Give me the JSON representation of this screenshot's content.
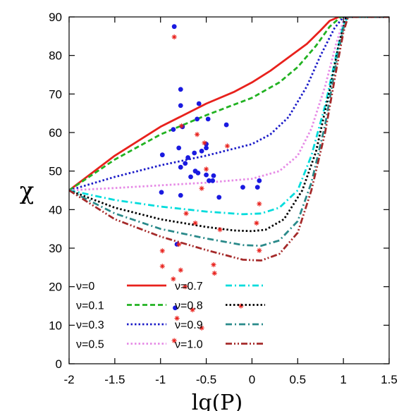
{
  "chart_data": {
    "type": "line",
    "xlabel": "lg(P)",
    "ylabel": "χ",
    "xlim": [
      -2,
      1.5
    ],
    "ylim": [
      0,
      90
    ],
    "xticks": [
      "-2",
      "-1.5",
      "-1",
      "-0.5",
      "0",
      "0.5",
      "1",
      "1.5"
    ],
    "yticks": [
      "0",
      "10",
      "20",
      "30",
      "40",
      "50",
      "60",
      "70",
      "80",
      "90"
    ],
    "grid": false,
    "legend_position": "bottom-left",
    "series": [
      {
        "name": "ν=0",
        "color": "#e8211c",
        "dash": "solid",
        "points": [
          [
            -2,
            45
          ],
          [
            -1.5,
            54
          ],
          [
            -1,
            61.5
          ],
          [
            -0.5,
            67.5
          ],
          [
            -0.2,
            70.5
          ],
          [
            0,
            73
          ],
          [
            0.2,
            76
          ],
          [
            0.4,
            79.5
          ],
          [
            0.6,
            83
          ],
          [
            0.75,
            86.5
          ],
          [
            0.85,
            89
          ],
          [
            0.95,
            90
          ],
          [
            1.5,
            90
          ]
        ]
      },
      {
        "name": "ν=0.1",
        "color": "#22b222",
        "dash": "dashed",
        "points": [
          [
            -2,
            45
          ],
          [
            -1.5,
            53
          ],
          [
            -1,
            59.5
          ],
          [
            -0.5,
            64.5
          ],
          [
            0,
            69
          ],
          [
            0.3,
            73
          ],
          [
            0.5,
            77
          ],
          [
            0.7,
            82.5
          ],
          [
            0.85,
            87.5
          ],
          [
            0.97,
            90
          ],
          [
            1.5,
            90
          ]
        ]
      },
      {
        "name": "ν=0.3",
        "color": "#1a1ac8",
        "dash": "dotted",
        "points": [
          [
            -2,
            45
          ],
          [
            -1.5,
            48.5
          ],
          [
            -1,
            51.5
          ],
          [
            -0.5,
            54
          ],
          [
            0,
            57
          ],
          [
            0.2,
            59.5
          ],
          [
            0.4,
            64
          ],
          [
            0.6,
            72
          ],
          [
            0.75,
            80
          ],
          [
            0.9,
            87
          ],
          [
            1,
            90
          ],
          [
            1.5,
            90
          ]
        ]
      },
      {
        "name": "ν=0.5",
        "color": "#e68be6",
        "dash": "dotted",
        "points": [
          [
            -2,
            45
          ],
          [
            -1.5,
            45.6
          ],
          [
            -1,
            46.3
          ],
          [
            -0.5,
            47
          ],
          [
            0,
            48
          ],
          [
            0.3,
            50
          ],
          [
            0.5,
            54
          ],
          [
            0.65,
            61
          ],
          [
            0.8,
            72
          ],
          [
            0.92,
            83
          ],
          [
            1,
            89
          ],
          [
            1.05,
            90
          ],
          [
            1.5,
            90
          ]
        ]
      },
      {
        "name": "ν=0.7",
        "color": "#00dcdc",
        "dash": "dashdot",
        "points": [
          [
            -2,
            45
          ],
          [
            -1.5,
            42.5
          ],
          [
            -1,
            40.8
          ],
          [
            -0.5,
            39.5
          ],
          [
            -0.1,
            38.8
          ],
          [
            0.1,
            39
          ],
          [
            0.3,
            40.5
          ],
          [
            0.5,
            45
          ],
          [
            0.65,
            54
          ],
          [
            0.8,
            67
          ],
          [
            0.92,
            80
          ],
          [
            1,
            88
          ],
          [
            1.05,
            90
          ],
          [
            1.5,
            90
          ]
        ]
      },
      {
        "name": "ν=0.8",
        "color": "#000000",
        "dash": "dotted",
        "points": [
          [
            -2,
            45
          ],
          [
            -1.5,
            40.5
          ],
          [
            -1,
            37.5
          ],
          [
            -0.5,
            35.5
          ],
          [
            -0.2,
            34.6
          ],
          [
            0,
            34.4
          ],
          [
            0.15,
            34.8
          ],
          [
            0.35,
            37.5
          ],
          [
            0.55,
            45
          ],
          [
            0.7,
            55
          ],
          [
            0.85,
            71
          ],
          [
            0.95,
            83
          ],
          [
            1.03,
            90
          ],
          [
            1.5,
            90
          ]
        ]
      },
      {
        "name": "ν=0.9",
        "color": "#2a8a8a",
        "dash": "dashdot",
        "points": [
          [
            -2,
            45
          ],
          [
            -1.5,
            39
          ],
          [
            -1,
            35
          ],
          [
            -0.5,
            32.5
          ],
          [
            -0.1,
            30.8
          ],
          [
            0.1,
            30.6
          ],
          [
            0.3,
            32
          ],
          [
            0.5,
            37
          ],
          [
            0.65,
            47
          ],
          [
            0.8,
            62
          ],
          [
            0.92,
            78
          ],
          [
            1,
            87
          ],
          [
            1.05,
            90
          ],
          [
            1.5,
            90
          ]
        ]
      },
      {
        "name": "ν=1.0",
        "color": "#a52a2a",
        "dash": "dashdotdot",
        "points": [
          [
            -2,
            45
          ],
          [
            -1.5,
            37.5
          ],
          [
            -1,
            33
          ],
          [
            -0.5,
            29.5
          ],
          [
            -0.1,
            27
          ],
          [
            0.1,
            26.8
          ],
          [
            0.3,
            28.5
          ],
          [
            0.5,
            34
          ],
          [
            0.65,
            45
          ],
          [
            0.8,
            60
          ],
          [
            0.92,
            76
          ],
          [
            1,
            86
          ],
          [
            1.05,
            90
          ],
          [
            1.5,
            90
          ]
        ]
      }
    ],
    "scatter": [
      {
        "marker": "circle",
        "color": "#1a1ae0",
        "points": [
          [
            -0.85,
            87.5
          ],
          [
            -0.78,
            71.2
          ],
          [
            -0.78,
            67
          ],
          [
            -0.58,
            67.5
          ],
          [
            -0.6,
            63.5
          ],
          [
            -0.48,
            63.5
          ],
          [
            -0.28,
            62
          ],
          [
            -0.86,
            60.8
          ],
          [
            -0.76,
            61.5
          ],
          [
            -0.5,
            57
          ],
          [
            -0.5,
            56
          ],
          [
            -0.8,
            56
          ],
          [
            -0.55,
            55.2
          ],
          [
            -0.63,
            54.7
          ],
          [
            -0.7,
            53.5
          ],
          [
            -0.98,
            54.2
          ],
          [
            -0.73,
            52
          ],
          [
            -0.78,
            51
          ],
          [
            -0.62,
            50
          ],
          [
            -0.59,
            49.5
          ],
          [
            -0.5,
            49
          ],
          [
            -0.42,
            48.8
          ],
          [
            -0.67,
            48.5
          ],
          [
            -0.47,
            47.5
          ],
          [
            -0.43,
            47.5
          ],
          [
            0.08,
            47.5
          ],
          [
            -0.1,
            45.8
          ],
          [
            0.06,
            45.8
          ],
          [
            -0.99,
            44.5
          ],
          [
            -0.78,
            43.7
          ],
          [
            -0.36,
            43.2
          ],
          [
            -0.82,
            31
          ],
          [
            -0.84,
            14.5
          ]
        ]
      },
      {
        "marker": "asterisk",
        "color": "#e8211c",
        "points": [
          [
            -0.85,
            84.8
          ],
          [
            -0.77,
            61.7
          ],
          [
            -0.6,
            59.5
          ],
          [
            -0.52,
            57.3
          ],
          [
            -0.27,
            56.5
          ],
          [
            -0.5,
            50.5
          ],
          [
            -0.55,
            45.5
          ],
          [
            -0.72,
            39
          ],
          [
            0.08,
            41.5
          ],
          [
            -0.62,
            36.5
          ],
          [
            -0.35,
            34.8
          ],
          [
            0.05,
            36.5
          ],
          [
            -0.8,
            31
          ],
          [
            -0.98,
            29.3
          ],
          [
            0.08,
            29.4
          ],
          [
            -0.42,
            25.7
          ],
          [
            -0.98,
            25.3
          ],
          [
            -0.78,
            24.3
          ],
          [
            -0.41,
            23.5
          ],
          [
            -0.86,
            22
          ],
          [
            -0.73,
            20
          ],
          [
            -0.65,
            14
          ],
          [
            -0.12,
            15
          ],
          [
            -0.82,
            11.8
          ],
          [
            -0.55,
            9.3
          ],
          [
            -0.85,
            6
          ]
        ]
      }
    ]
  }
}
